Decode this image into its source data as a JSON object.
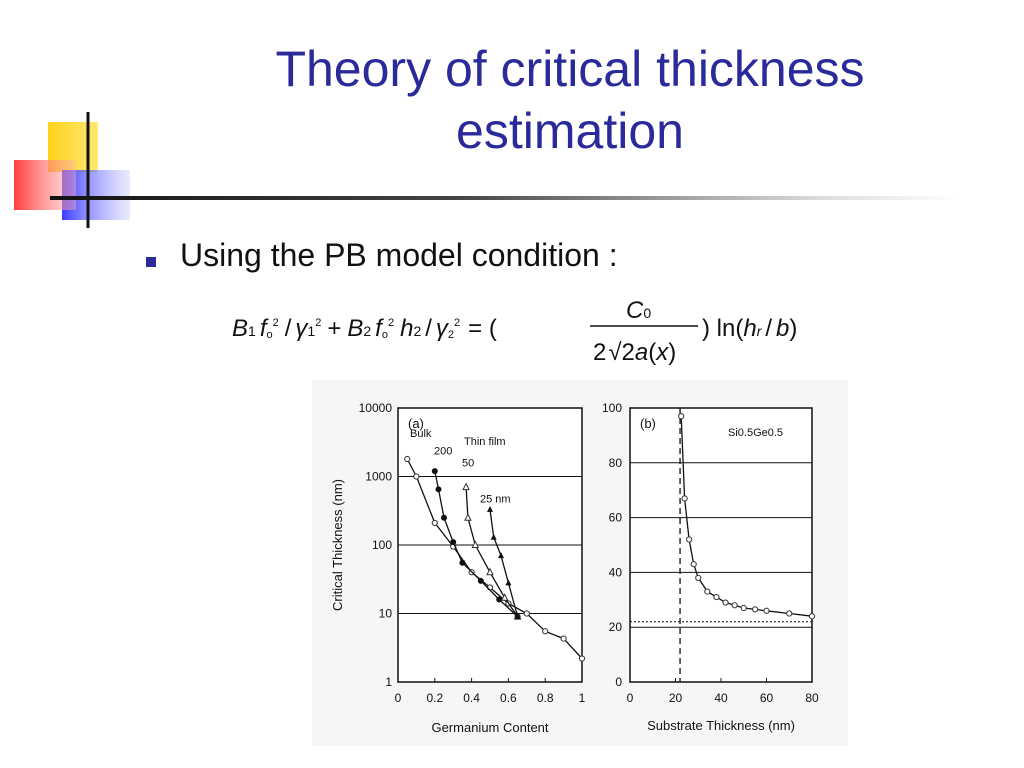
{
  "slide": {
    "title_line1": "Theory of critical thickness",
    "title_line2": "estimation",
    "bullet_text": "Using the PB model condition :",
    "equation": {
      "lhs_terms": [
        "B1",
        "f",
        "0",
        "2",
        "/",
        "γ1",
        "2",
        "+",
        "B2",
        "f",
        "0",
        "2",
        "h2",
        "/",
        "γ2",
        "2"
      ],
      "numerator": "C0",
      "denominator": "2√2a(x)",
      "rhs_tail": "ln(hr / b)"
    }
  },
  "colors": {
    "title": "#2a2a9a",
    "bullet": "#2a2a9a",
    "deco_yellow": "#ffd21a",
    "deco_blue": "#4b4bff",
    "deco_red": "#ff6b6b"
  },
  "chart_data": [
    {
      "type": "line",
      "panel_label": "(a)",
      "xlabel": "Germanium Content",
      "ylabel": "Critical Thickness (nm)",
      "xlim": [
        0,
        1
      ],
      "ylim": [
        1,
        10000
      ],
      "yscale": "log",
      "xticks": [
        "0",
        "0.2",
        "0.4",
        "0.6",
        "0.8",
        "1"
      ],
      "yticks": [
        "1",
        "10",
        "100",
        "1000",
        "10000"
      ],
      "annotations": [
        "Bulk",
        "200",
        "Thin film",
        "50",
        "25 nm"
      ],
      "series": [
        {
          "name": "Bulk",
          "x": [
            0.05,
            0.1,
            0.2,
            0.3,
            0.4,
            0.5,
            0.6,
            0.7,
            0.8,
            0.9,
            1.0
          ],
          "y": [
            1800,
            1000,
            210,
            95,
            40,
            24,
            14,
            10,
            5.5,
            4.3,
            2.2
          ]
        },
        {
          "name": "200",
          "x": [
            0.2,
            0.22,
            0.25,
            0.3,
            0.35,
            0.45,
            0.55,
            0.65
          ],
          "y": [
            1200,
            650,
            250,
            110,
            55,
            30,
            16,
            9
          ]
        },
        {
          "name": "50",
          "x": [
            0.37,
            0.38,
            0.42,
            0.5,
            0.58,
            0.65
          ],
          "y": [
            700,
            250,
            100,
            40,
            17,
            9
          ]
        },
        {
          "name": "25 nm",
          "x": [
            0.5,
            0.52,
            0.56,
            0.6,
            0.65
          ],
          "y": [
            330,
            130,
            70,
            28,
            9
          ]
        }
      ],
      "gridlines_y": [
        10,
        100,
        1000
      ],
      "grid": false,
      "legend": "none"
    },
    {
      "type": "line",
      "panel_label": "(b)",
      "annotation": "Si0.5Ge0.5",
      "xlabel": "Substrate Thickness  (nm)",
      "ylabel": "",
      "xlim": [
        0,
        80
      ],
      "ylim": [
        0,
        100
      ],
      "xticks": [
        "0",
        "20",
        "40",
        "60",
        "80"
      ],
      "yticks": [
        "0",
        "20",
        "40",
        "60",
        "80",
        "100"
      ],
      "series": [
        {
          "name": "",
          "x": [
            22.5,
            24,
            26,
            28,
            30,
            34,
            38,
            42,
            46,
            50,
            55,
            60,
            70,
            80
          ],
          "y": [
            97,
            67,
            52,
            43,
            38,
            33,
            31,
            29,
            28,
            27,
            26.5,
            26,
            25,
            24
          ]
        }
      ],
      "vertical_asymptote_x": 22,
      "horizontal_asymptote_y": 22,
      "gridlines_y": [
        20,
        40,
        60,
        80
      ],
      "grid": false,
      "legend": "none"
    }
  ]
}
